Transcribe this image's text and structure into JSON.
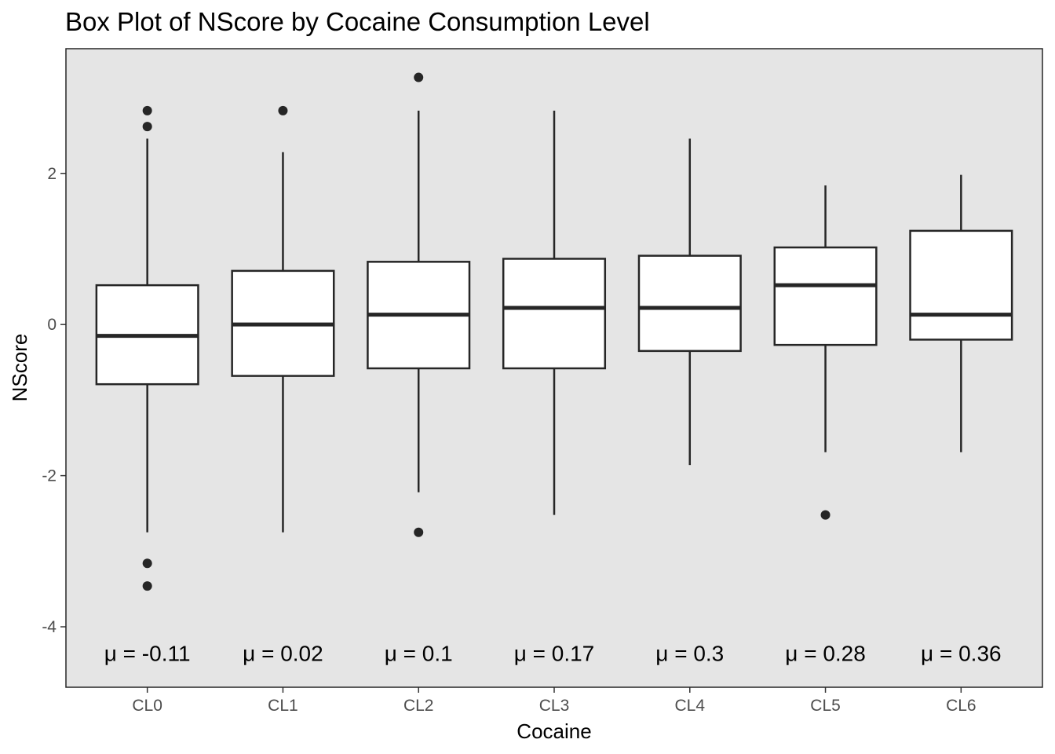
{
  "chart_data": {
    "type": "boxplot",
    "title": "Box Plot of NScore by Cocaine Consumption Level",
    "xlabel": "Cocaine",
    "ylabel": "NScore",
    "categories": [
      "CL0",
      "CL1",
      "CL2",
      "CL3",
      "CL4",
      "CL5",
      "CL6"
    ],
    "ylim": [
      -4.8,
      3.65
    ],
    "yticks": [
      -4,
      -2,
      0,
      2
    ],
    "grid": false,
    "panel_background": "#e5e5e5",
    "box_fill": "#ffffff",
    "line_color": "#262626",
    "boxes": [
      {
        "category": "CL0",
        "lower_whisker": -2.75,
        "q1": -0.79,
        "median": -0.15,
        "q3": 0.52,
        "upper_whisker": 2.46,
        "outliers": [
          2.83,
          2.62,
          -3.16,
          -3.46
        ]
      },
      {
        "category": "CL1",
        "lower_whisker": -2.75,
        "q1": -0.68,
        "median": 0.0,
        "q3": 0.71,
        "upper_whisker": 2.28,
        "outliers": [
          2.83
        ]
      },
      {
        "category": "CL2",
        "lower_whisker": -2.22,
        "q1": -0.58,
        "median": 0.13,
        "q3": 0.83,
        "upper_whisker": 2.83,
        "outliers": [
          3.27,
          -2.75
        ]
      },
      {
        "category": "CL3",
        "lower_whisker": -2.52,
        "q1": -0.58,
        "median": 0.22,
        "q3": 0.87,
        "upper_whisker": 2.83,
        "outliers": []
      },
      {
        "category": "CL4",
        "lower_whisker": -1.86,
        "q1": -0.35,
        "median": 0.22,
        "q3": 0.91,
        "upper_whisker": 2.46,
        "outliers": []
      },
      {
        "category": "CL5",
        "lower_whisker": -1.69,
        "q1": -0.27,
        "median": 0.52,
        "q3": 1.02,
        "upper_whisker": 1.84,
        "outliers": [
          -2.52
        ]
      },
      {
        "category": "CL6",
        "lower_whisker": -1.69,
        "q1": -0.2,
        "median": 0.13,
        "q3": 1.24,
        "upper_whisker": 1.98,
        "outliers": []
      }
    ],
    "annotations": [
      "μ = -0.11",
      "μ = 0.02",
      "μ = 0.1",
      "μ = 0.17",
      "μ = 0.3",
      "μ = 0.28",
      "μ = 0.36"
    ],
    "annotation_y": -4.35
  }
}
